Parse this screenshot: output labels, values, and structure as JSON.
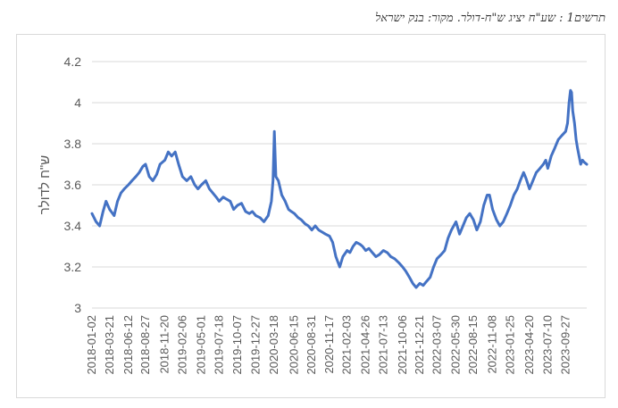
{
  "caption": "תרשים1 : שע\"ח יציג ש\"ח-דולר. מקור: בנק ישראל",
  "chart_data": {
    "type": "line",
    "title": "",
    "ylabel": "ש\"ח לדולר",
    "xlabel": "",
    "ylim": [
      3,
      4.2
    ],
    "yticks": [
      "3",
      "3.2",
      "3.4",
      "3.6",
      "3.8",
      "4",
      "4.2"
    ],
    "grid": "horizontal",
    "legend": "none",
    "line_color": "#4472C4",
    "x_tick_labels": [
      "2018-01-02",
      "2018-03-21",
      "2018-06-12",
      "2018-08-27",
      "2018-11-20",
      "2019-02-06",
      "2019-05-01",
      "2019-07-18",
      "2019-10-07",
      "2019-12-27",
      "2020-03-18",
      "2020-06-15",
      "2020-08-31",
      "2020-11-17",
      "2021-02-03",
      "2021-04-26",
      "2021-07-13",
      "2021-10-06",
      "2021-12-21",
      "2022-03-07",
      "2022-05-30",
      "2022-08-15",
      "2022-11-08",
      "2023-01-25",
      "2023-04-20",
      "2023-07-10",
      "2023-09-27"
    ],
    "series": [
      {
        "x": [
          "2018-01-02",
          "2018-01-20",
          "2018-02-05",
          "2018-02-20",
          "2018-03-05",
          "2018-03-21",
          "2018-04-10",
          "2018-04-25",
          "2018-05-10",
          "2018-05-25",
          "2018-06-12",
          "2018-06-28",
          "2018-07-15",
          "2018-07-30",
          "2018-08-15",
          "2018-08-27",
          "2018-09-12",
          "2018-09-28",
          "2018-10-15",
          "2018-10-30",
          "2018-11-20",
          "2018-12-05",
          "2018-12-20",
          "2019-01-05",
          "2019-01-20",
          "2019-02-06",
          "2019-02-25",
          "2019-03-15",
          "2019-04-01",
          "2019-04-15",
          "2019-05-01",
          "2019-05-20",
          "2019-06-05",
          "2019-06-20",
          "2019-07-05",
          "2019-07-18",
          "2019-08-05",
          "2019-08-20",
          "2019-09-05",
          "2019-09-20",
          "2019-10-07",
          "2019-10-25",
          "2019-11-12",
          "2019-11-28",
          "2019-12-12",
          "2019-12-27",
          "2020-01-15",
          "2020-02-01",
          "2020-02-20",
          "2020-03-05",
          "2020-03-12",
          "2020-03-18",
          "2020-03-25",
          "2020-04-05",
          "2020-04-20",
          "2020-05-05",
          "2020-05-20",
          "2020-06-01",
          "2020-06-15",
          "2020-07-01",
          "2020-07-15",
          "2020-08-01",
          "2020-08-15",
          "2020-08-31",
          "2020-09-15",
          "2020-09-30",
          "2020-10-15",
          "2020-10-30",
          "2020-11-17",
          "2020-12-01",
          "2020-12-15",
          "2021-01-01",
          "2021-01-15",
          "2021-02-03",
          "2021-02-15",
          "2021-03-01",
          "2021-03-15",
          "2021-04-01",
          "2021-04-12",
          "2021-04-26",
          "2021-05-10",
          "2021-05-25",
          "2021-06-10",
          "2021-06-25",
          "2021-07-13",
          "2021-07-30",
          "2021-08-15",
          "2021-09-01",
          "2021-09-20",
          "2021-10-06",
          "2021-10-20",
          "2021-11-05",
          "2021-11-20",
          "2021-12-05",
          "2021-12-21",
          "2022-01-05",
          "2022-01-20",
          "2022-02-05",
          "2022-02-20",
          "2022-03-07",
          "2022-03-25",
          "2022-04-10",
          "2022-04-25",
          "2022-05-10",
          "2022-05-30",
          "2022-06-15",
          "2022-06-30",
          "2022-07-15",
          "2022-07-30",
          "2022-08-15",
          "2022-08-30",
          "2022-09-15",
          "2022-09-30",
          "2022-10-15",
          "2022-10-25",
          "2022-11-08",
          "2022-11-25",
          "2022-12-10",
          "2022-12-25",
          "2023-01-10",
          "2023-01-25",
          "2023-02-10",
          "2023-02-25",
          "2023-03-10",
          "2023-03-25",
          "2023-04-05",
          "2023-04-20",
          "2023-05-05",
          "2023-05-20",
          "2023-06-05",
          "2023-06-20",
          "2023-07-01",
          "2023-07-10",
          "2023-07-25",
          "2023-08-10",
          "2023-08-25",
          "2023-09-10",
          "2023-09-27",
          "2023-10-05",
          "2023-10-12",
          "2023-10-18",
          "2023-10-23",
          "2023-10-28",
          "2023-11-05",
          "2023-11-12",
          "2023-11-18",
          "2023-11-25",
          "2023-12-02",
          "2023-12-10",
          "2023-12-18",
          "2023-12-29"
        ],
        "y": [
          3.46,
          3.42,
          3.4,
          3.47,
          3.52,
          3.48,
          3.45,
          3.52,
          3.56,
          3.58,
          3.6,
          3.62,
          3.64,
          3.66,
          3.69,
          3.7,
          3.64,
          3.62,
          3.65,
          3.7,
          3.72,
          3.76,
          3.74,
          3.76,
          3.7,
          3.64,
          3.62,
          3.64,
          3.6,
          3.58,
          3.6,
          3.62,
          3.58,
          3.56,
          3.54,
          3.52,
          3.54,
          3.53,
          3.52,
          3.48,
          3.5,
          3.51,
          3.47,
          3.46,
          3.47,
          3.45,
          3.44,
          3.42,
          3.45,
          3.52,
          3.62,
          3.86,
          3.64,
          3.62,
          3.55,
          3.52,
          3.48,
          3.47,
          3.46,
          3.44,
          3.43,
          3.41,
          3.4,
          3.38,
          3.4,
          3.38,
          3.37,
          3.36,
          3.35,
          3.32,
          3.25,
          3.2,
          3.25,
          3.28,
          3.27,
          3.3,
          3.32,
          3.31,
          3.3,
          3.28,
          3.29,
          3.27,
          3.25,
          3.26,
          3.28,
          3.27,
          3.25,
          3.24,
          3.22,
          3.2,
          3.18,
          3.15,
          3.12,
          3.1,
          3.12,
          3.11,
          3.13,
          3.15,
          3.2,
          3.24,
          3.26,
          3.28,
          3.34,
          3.38,
          3.42,
          3.36,
          3.4,
          3.44,
          3.46,
          3.43,
          3.38,
          3.42,
          3.5,
          3.55,
          3.55,
          3.48,
          3.43,
          3.4,
          3.42,
          3.46,
          3.5,
          3.55,
          3.58,
          3.62,
          3.66,
          3.63,
          3.58,
          3.62,
          3.66,
          3.68,
          3.7,
          3.72,
          3.68,
          3.74,
          3.78,
          3.82,
          3.84,
          3.86,
          3.9,
          4.0,
          4.06,
          4.05,
          3.96,
          3.9,
          3.82,
          3.78,
          3.74,
          3.7,
          3.72,
          3.71,
          3.7
        ]
      }
    ]
  }
}
